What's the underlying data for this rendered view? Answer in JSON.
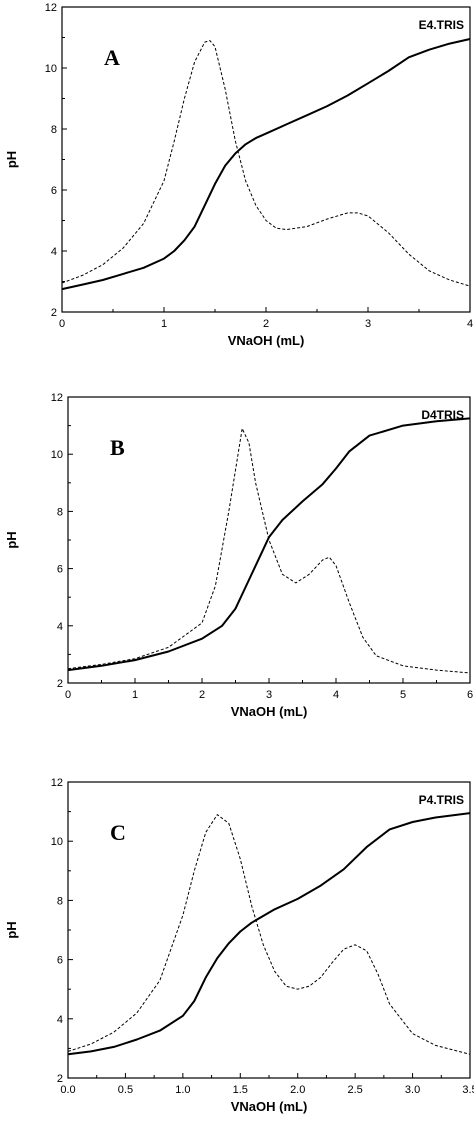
{
  "chart_data": [
    {
      "type": "line",
      "panel_label": "A",
      "sample_label": "E4.TRIS",
      "xlabel": "VNaOH (mL)",
      "ylabel": "pH",
      "xlim": [
        0,
        4
      ],
      "ylim": [
        2,
        12
      ],
      "xticks": [
        0,
        1,
        2,
        3,
        4
      ],
      "xtick_labels": [
        "0",
        "1",
        "2",
        "3",
        "4"
      ],
      "yticks": [
        2,
        4,
        6,
        8,
        10,
        12
      ],
      "ytick_labels": [
        "2",
        "4",
        "6",
        "8",
        "10",
        "12"
      ],
      "grid": false,
      "series": [
        {
          "style": "solid",
          "x": [
            0,
            0.2,
            0.4,
            0.6,
            0.8,
            1.0,
            1.1,
            1.2,
            1.3,
            1.4,
            1.5,
            1.6,
            1.7,
            1.8,
            1.9,
            2.0,
            2.2,
            2.4,
            2.6,
            2.8,
            3.0,
            3.2,
            3.4,
            3.6,
            3.8,
            4.0
          ],
          "y": [
            2.75,
            2.9,
            3.05,
            3.25,
            3.45,
            3.75,
            4.0,
            4.35,
            4.8,
            5.5,
            6.2,
            6.8,
            7.2,
            7.5,
            7.7,
            7.85,
            8.15,
            8.45,
            8.75,
            9.1,
            9.5,
            9.9,
            10.35,
            10.6,
            10.8,
            10.95
          ]
        },
        {
          "style": "dashed",
          "x": [
            0,
            0.2,
            0.4,
            0.6,
            0.8,
            1.0,
            1.1,
            1.2,
            1.3,
            1.4,
            1.45,
            1.5,
            1.6,
            1.7,
            1.8,
            1.9,
            2.0,
            2.1,
            2.2,
            2.4,
            2.6,
            2.8,
            2.9,
            3.0,
            3.2,
            3.4,
            3.6,
            3.8,
            4.0
          ],
          "y": [
            2.95,
            3.2,
            3.55,
            4.1,
            4.9,
            6.3,
            7.6,
            9.0,
            10.2,
            10.85,
            10.9,
            10.7,
            9.3,
            7.6,
            6.3,
            5.5,
            5.0,
            4.75,
            4.7,
            4.8,
            5.05,
            5.25,
            5.25,
            5.15,
            4.6,
            3.9,
            3.35,
            3.05,
            2.85
          ]
        }
      ]
    },
    {
      "type": "line",
      "panel_label": "B",
      "sample_label": "D4TRIS",
      "xlabel": "VNaOH (mL)",
      "ylabel": "pH",
      "xlim": [
        0,
        6
      ],
      "ylim": [
        2,
        12
      ],
      "xticks": [
        0,
        1,
        2,
        3,
        4,
        5,
        6
      ],
      "xtick_labels": [
        "0",
        "1",
        "2",
        "3",
        "4",
        "5",
        "6"
      ],
      "yticks": [
        2,
        4,
        6,
        8,
        10,
        12
      ],
      "ytick_labels": [
        "2",
        "4",
        "6",
        "8",
        "10",
        "12"
      ],
      "grid": false,
      "series": [
        {
          "style": "solid",
          "x": [
            0,
            0.5,
            1.0,
            1.5,
            2.0,
            2.3,
            2.5,
            2.7,
            2.9,
            3.0,
            3.2,
            3.5,
            3.8,
            4.0,
            4.2,
            4.5,
            5.0,
            5.5,
            6.0
          ],
          "y": [
            2.45,
            2.6,
            2.8,
            3.1,
            3.55,
            4.0,
            4.6,
            5.6,
            6.6,
            7.1,
            7.7,
            8.35,
            8.95,
            9.5,
            10.1,
            10.65,
            11.0,
            11.15,
            11.25
          ]
        },
        {
          "style": "dashed",
          "x": [
            0,
            0.5,
            1.0,
            1.5,
            2.0,
            2.2,
            2.4,
            2.6,
            2.7,
            2.8,
            3.0,
            3.2,
            3.4,
            3.6,
            3.8,
            3.9,
            4.0,
            4.2,
            4.4,
            4.6,
            5.0,
            5.5,
            6.0
          ],
          "y": [
            2.5,
            2.65,
            2.85,
            3.25,
            4.1,
            5.4,
            8.0,
            10.9,
            10.4,
            9.0,
            7.0,
            5.8,
            5.5,
            5.8,
            6.3,
            6.4,
            6.1,
            4.8,
            3.6,
            2.95,
            2.6,
            2.45,
            2.35
          ]
        }
      ]
    },
    {
      "type": "line",
      "panel_label": "C",
      "sample_label": "P4.TRIS",
      "xlabel": "VNaOH (mL)",
      "ylabel": "pH",
      "xlim": [
        0,
        3.5
      ],
      "ylim": [
        2,
        12
      ],
      "xticks": [
        0,
        0.5,
        1.0,
        1.5,
        2.0,
        2.5,
        3.0,
        3.5
      ],
      "xtick_labels": [
        "0.0",
        "0.5",
        "1.0",
        "1.5",
        "2.0",
        "2.5",
        "3.0",
        "3.5"
      ],
      "yticks": [
        2,
        4,
        6,
        8,
        10,
        12
      ],
      "ytick_labels": [
        "2",
        "4",
        "6",
        "8",
        "10",
        "12"
      ],
      "grid": false,
      "series": [
        {
          "style": "solid",
          "x": [
            0,
            0.2,
            0.4,
            0.6,
            0.8,
            1.0,
            1.1,
            1.2,
            1.3,
            1.4,
            1.5,
            1.6,
            1.8,
            2.0,
            2.2,
            2.4,
            2.6,
            2.8,
            3.0,
            3.2,
            3.5
          ],
          "y": [
            2.8,
            2.9,
            3.05,
            3.3,
            3.6,
            4.1,
            4.6,
            5.4,
            6.05,
            6.55,
            6.95,
            7.25,
            7.7,
            8.05,
            8.5,
            9.05,
            9.8,
            10.4,
            10.65,
            10.8,
            10.95
          ]
        },
        {
          "style": "dashed",
          "x": [
            0,
            0.2,
            0.4,
            0.6,
            0.8,
            1.0,
            1.1,
            1.2,
            1.3,
            1.4,
            1.5,
            1.6,
            1.7,
            1.8,
            1.9,
            2.0,
            2.1,
            2.2,
            2.3,
            2.4,
            2.5,
            2.6,
            2.7,
            2.8,
            3.0,
            3.2,
            3.5
          ],
          "y": [
            2.9,
            3.15,
            3.55,
            4.2,
            5.3,
            7.5,
            9.0,
            10.3,
            10.9,
            10.6,
            9.4,
            7.8,
            6.5,
            5.6,
            5.1,
            5.0,
            5.1,
            5.4,
            5.9,
            6.35,
            6.5,
            6.3,
            5.5,
            4.5,
            3.5,
            3.1,
            2.8
          ]
        }
      ]
    }
  ]
}
